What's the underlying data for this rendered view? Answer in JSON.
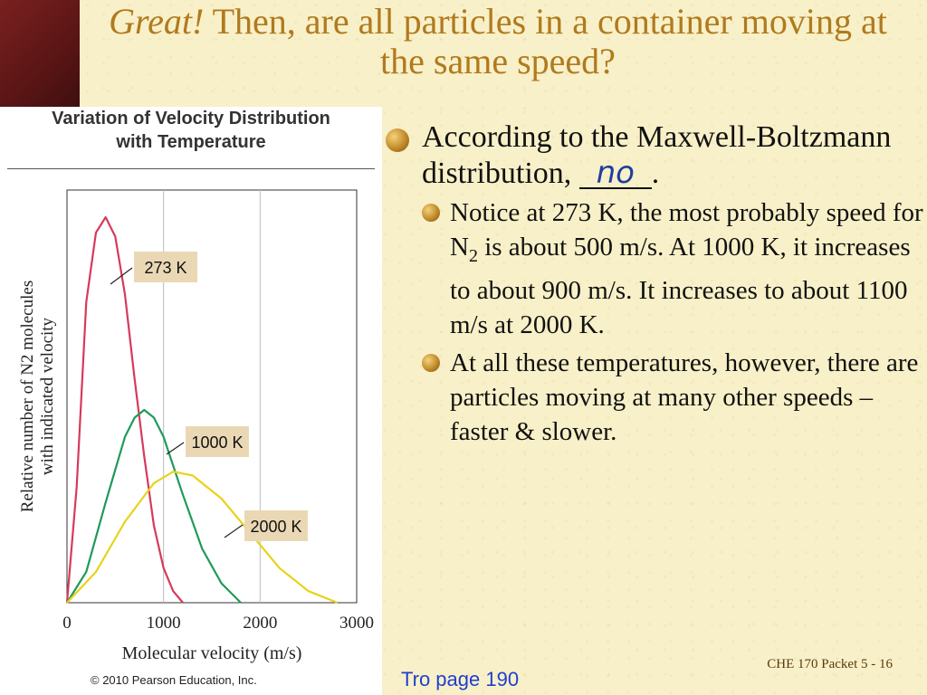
{
  "slide": {
    "title_italic": "Great!",
    "title_rest": " Then, are all particles in a container moving at the same speed?",
    "bullet1_text": "According to the Maxwell-Boltzmann distribution, ",
    "bullet1_handwritten": "no",
    "bullet1_end": ".",
    "sub_bullet1_a": "Notice at 273 K, the most probably speed  for N",
    "sub_bullet1_sub": "2",
    "sub_bullet1_b": " is about 500 m/s.  At 1000 K, it increases to about 900 m/s.  It increases to about 1100 m/s at 2000 K.",
    "sub_bullet2": "At all these temperatures, however, there are particles moving at many other speeds – faster & slower.",
    "footer_left": "Tro page 190",
    "footer_right": "CHE 170 Packet 5 - 16"
  },
  "figure": {
    "title_line1": "Variation of Velocity Distribution",
    "title_line2": "with Temperature",
    "copyright": "© 2010 Pearson Education, Inc."
  },
  "chart_data": {
    "type": "line",
    "title": "Variation of Velocity Distribution with Temperature",
    "xlabel": "Molecular velocity (m/s)",
    "ylabel": "Relative number of N2 molecules with indicated velocity",
    "xlim": [
      0,
      3000
    ],
    "ylim": [
      0,
      1
    ],
    "x_ticks": [
      "0",
      "1000",
      "2000",
      "3000"
    ],
    "grid": "vertical lines at 1000 and 2000",
    "series": [
      {
        "name": "273 K",
        "color": "#d63a5a",
        "x": [
          0,
          100,
          200,
          300,
          400,
          500,
          600,
          700,
          800,
          900,
          1000,
          1100,
          1200
        ],
        "y": [
          0,
          0.3,
          0.78,
          0.96,
          1.0,
          0.95,
          0.8,
          0.58,
          0.38,
          0.2,
          0.09,
          0.03,
          0.0
        ]
      },
      {
        "name": "1000 K",
        "color": "#1f9a5a",
        "x": [
          0,
          200,
          400,
          600,
          700,
          800,
          900,
          1000,
          1200,
          1400,
          1600,
          1800
        ],
        "y": [
          0,
          0.08,
          0.26,
          0.43,
          0.48,
          0.5,
          0.48,
          0.43,
          0.28,
          0.14,
          0.05,
          0.0
        ]
      },
      {
        "name": "2000 K",
        "color": "#e8d21a",
        "x": [
          0,
          300,
          600,
          900,
          1100,
          1300,
          1600,
          1900,
          2200,
          2500,
          2800
        ],
        "y": [
          0,
          0.08,
          0.21,
          0.31,
          0.34,
          0.33,
          0.27,
          0.18,
          0.09,
          0.03,
          0.0
        ]
      }
    ],
    "series_labels": [
      "273 K",
      "1000 K",
      "2000 K"
    ],
    "colors": {
      "axis": "#333333",
      "label_box": "#ead8b5"
    }
  }
}
